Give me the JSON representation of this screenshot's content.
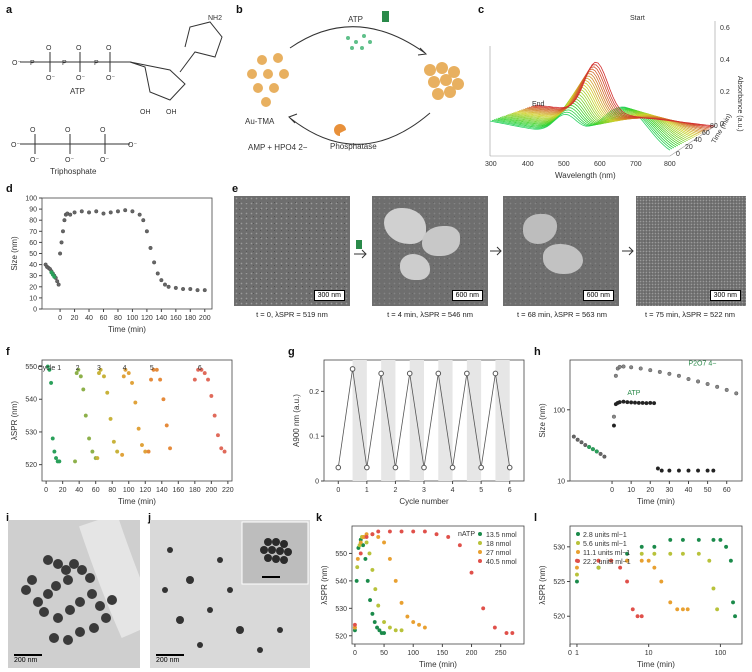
{
  "panel_labels": {
    "a": "a",
    "b": "b",
    "c": "c",
    "d": "d",
    "e": "e",
    "f": "f",
    "g": "g",
    "h": "h",
    "i": "i",
    "j": "j",
    "k": "k",
    "l": "l"
  },
  "panel_a": {
    "atp": "ATP",
    "triphosphate": "Triphosphate",
    "nh2": "NH2",
    "oh1": "OH",
    "oh2": "OH"
  },
  "panel_b": {
    "atp": "ATP",
    "au_tma": "Au-TMA",
    "phosphatase": "Phosphatase",
    "amp": "AMP + HPO4 2−"
  },
  "panel_c": {
    "start": "Start",
    "end": "End",
    "xlabel": "Wavelength (nm)",
    "ylabel": "Absorbance (a.u.)",
    "zlabel": "Time (min)",
    "xticks": [
      "300",
      "400",
      "500",
      "600",
      "700",
      "800"
    ],
    "yticks": [
      "0",
      "0.2",
      "0.4",
      "0.6"
    ],
    "zticks": [
      "0",
      "20",
      "40",
      "60",
      "80"
    ]
  },
  "panel_e": {
    "captions": [
      "t = 0, λSPR = 519 nm",
      "t = 4 min, λSPR = 546 nm",
      "t = 68 min, λSPR = 563 nm",
      "t = 75 min, λSPR = 522 nm"
    ],
    "scalebars": [
      "300 nm",
      "600 nm",
      "600 nm",
      "300 nm"
    ]
  },
  "panel_i": {
    "scalebar": "200 nm"
  },
  "panel_j": {
    "scalebar": "200 nm"
  },
  "chart_data": [
    {
      "id": "d",
      "type": "scatter",
      "xlabel": "Time (min)",
      "ylabel": "Size (nm)",
      "xlim": [
        -25,
        210
      ],
      "ylim": [
        0,
        100
      ],
      "xticks": [
        0,
        20,
        40,
        60,
        80,
        100,
        120,
        140,
        160,
        180,
        200
      ],
      "yticks": [
        0,
        10,
        20,
        30,
        40,
        50,
        60,
        70,
        80,
        90,
        100
      ],
      "series": [
        {
          "color": "#666",
          "x": [
            -20,
            -18,
            -16,
            -14,
            -12,
            -10,
            -8,
            -6,
            -4,
            -2,
            0,
            2,
            4,
            6,
            8,
            10,
            14,
            20,
            30,
            40,
            50,
            60,
            70,
            80,
            90,
            100,
            110,
            115,
            120,
            125,
            130,
            135,
            140,
            145,
            150,
            160,
            170,
            180,
            190,
            200
          ],
          "y": [
            40,
            38,
            37,
            36,
            34,
            32,
            30,
            28,
            25,
            22,
            50,
            60,
            70,
            80,
            85,
            86,
            85,
            87,
            88,
            87,
            88,
            86,
            87,
            88,
            89,
            88,
            85,
            80,
            70,
            55,
            42,
            32,
            26,
            22,
            20,
            19,
            18,
            18,
            17,
            17
          ]
        },
        {
          "color": "#2aa05a",
          "x": [
            -12,
            -10,
            -8
          ],
          "y": [
            33,
            31,
            29
          ]
        }
      ]
    },
    {
      "id": "f",
      "type": "scatter",
      "title": "",
      "xlabel": "Time (min)",
      "ylabel": "λSPR (nm)",
      "xlim": [
        -5,
        225
      ],
      "ylim": [
        515,
        552
      ],
      "xticks": [
        0,
        20,
        40,
        60,
        80,
        100,
        120,
        140,
        160,
        180,
        200,
        220
      ],
      "yticks": [
        520,
        530,
        540,
        550
      ],
      "cycle_labels": [
        "Cycle 1",
        "2",
        "3",
        "4",
        "5",
        "6"
      ],
      "series": [
        {
          "color": "#2aa05a",
          "x": [
            2,
            4,
            6,
            8,
            10,
            12,
            14,
            16
          ],
          "y": [
            550,
            549,
            545,
            528,
            524,
            522,
            521,
            521
          ]
        },
        {
          "color": "#8db04a",
          "x": [
            35,
            37,
            39,
            42,
            45,
            48,
            52,
            56,
            60
          ],
          "y": [
            521,
            548,
            549,
            547,
            543,
            535,
            528,
            524,
            522
          ]
        },
        {
          "color": "#c8b23a",
          "x": [
            62,
            64,
            66,
            70,
            74,
            78,
            82,
            86
          ],
          "y": [
            522,
            548,
            549,
            547,
            542,
            534,
            527,
            524
          ]
        },
        {
          "color": "#e0a23a",
          "x": [
            92,
            94,
            96,
            100,
            104,
            108,
            112,
            116,
            120
          ],
          "y": [
            523,
            547,
            549,
            548,
            545,
            539,
            531,
            526,
            524
          ]
        },
        {
          "color": "#e58a3a",
          "x": [
            124,
            127,
            130,
            134,
            138,
            142,
            146,
            150
          ],
          "y": [
            524,
            546,
            549,
            549,
            546,
            540,
            532,
            525
          ]
        },
        {
          "color": "#e06a5a",
          "x": [
            180,
            184,
            188,
            192,
            196,
            200,
            204,
            208,
            212,
            216
          ],
          "y": [
            546,
            549,
            549,
            548,
            546,
            541,
            535,
            529,
            525,
            524
          ]
        }
      ]
    },
    {
      "id": "g",
      "type": "line",
      "xlabel": "Cycle number",
      "ylabel": "A900 nm (a.u.)",
      "xlim": [
        -0.5,
        6.5
      ],
      "ylim": [
        0,
        0.27
      ],
      "xticks": [
        0,
        1,
        2,
        3,
        4,
        5,
        6
      ],
      "yticks": [
        0,
        0.1,
        0.2
      ],
      "x": [
        0,
        0.5,
        1,
        1.5,
        2,
        2.5,
        3,
        3.5,
        4,
        4.5,
        5,
        5.5,
        6
      ],
      "y": [
        0.03,
        0.25,
        0.03,
        0.24,
        0.03,
        0.24,
        0.03,
        0.24,
        0.03,
        0.24,
        0.03,
        0.24,
        0.03
      ]
    },
    {
      "id": "h",
      "type": "scatter",
      "xlabel": "Time (min)",
      "ylabel": "Size (nm)",
      "xlim": [
        -22,
        68
      ],
      "log_y": true,
      "ylim": [
        10,
        500
      ],
      "xticks": [
        0,
        10,
        20,
        30,
        40,
        50,
        60
      ],
      "yticks": [
        10,
        100
      ],
      "labels": {
        "atp": "ATP",
        "p2o7": "P2O7 4−"
      },
      "series": [
        {
          "name": "ATP",
          "color": "#222",
          "x": [
            1,
            2,
            3,
            4,
            6,
            8,
            10,
            12,
            14,
            16,
            18,
            20,
            22,
            24,
            26,
            30,
            35,
            40,
            45,
            50,
            53
          ],
          "y": [
            60,
            120,
            125,
            128,
            130,
            128,
            127,
            126,
            125,
            125,
            124,
            125,
            124,
            15,
            14,
            14,
            14,
            14,
            14,
            14,
            14
          ]
        },
        {
          "name": "P2O7 4−",
          "color": "#888",
          "x": [
            1,
            2,
            3,
            4,
            6,
            10,
            15,
            20,
            25,
            30,
            35,
            40,
            45,
            50,
            55,
            60,
            65
          ],
          "y": [
            80,
            300,
            380,
            400,
            405,
            395,
            380,
            360,
            340,
            320,
            300,
            270,
            250,
            230,
            210,
            190,
            170
          ]
        },
        {
          "color": "#666",
          "x": [
            -20,
            -18,
            -16,
            -14,
            -12,
            -10,
            -8,
            -6,
            -4
          ],
          "y": [
            42,
            38,
            35,
            32,
            30,
            28,
            26,
            24,
            22
          ]
        },
        {
          "color": "#2aa05a",
          "x": [
            -12,
            -10,
            -8
          ],
          "y": [
            30,
            28,
            26
          ]
        }
      ]
    },
    {
      "id": "k",
      "type": "scatter",
      "xlabel": "Time (min)",
      "ylabel": "λSPR (nm)",
      "xlim": [
        -5,
        290
      ],
      "ylim": [
        517,
        560
      ],
      "xticks": [
        0,
        50,
        100,
        150,
        200,
        250
      ],
      "yticks": [
        520,
        530,
        540,
        550
      ],
      "legend_title": "nATP",
      "series": [
        {
          "name": "13.5 nmol",
          "color": "#1a8a4a",
          "x": [
            0,
            3,
            6,
            10,
            14,
            18,
            22,
            26,
            30,
            34,
            38,
            42,
            46,
            50
          ],
          "y": [
            522,
            540,
            552,
            555,
            553,
            548,
            540,
            533,
            528,
            525,
            523,
            522,
            521,
            521
          ]
        },
        {
          "name": "18 nmol",
          "color": "#b8c23a",
          "x": [
            0,
            4,
            8,
            12,
            16,
            20,
            25,
            30,
            35,
            40,
            50,
            60,
            70,
            80
          ],
          "y": [
            523,
            545,
            553,
            556,
            556,
            554,
            550,
            544,
            537,
            531,
            525,
            523,
            522,
            522
          ]
        },
        {
          "name": "27 nmol",
          "color": "#e8a030",
          "x": [
            0,
            5,
            10,
            15,
            20,
            30,
            40,
            50,
            60,
            70,
            80,
            90,
            100,
            110,
            120
          ],
          "y": [
            523,
            548,
            554,
            556,
            557,
            557,
            556,
            554,
            548,
            540,
            532,
            527,
            525,
            524,
            523
          ]
        },
        {
          "name": "40.5 nmol",
          "color": "#e0504a",
          "x": [
            0,
            10,
            20,
            30,
            40,
            60,
            80,
            100,
            120,
            140,
            160,
            180,
            200,
            220,
            240,
            260,
            270
          ],
          "y": [
            524,
            550,
            556,
            557,
            558,
            558,
            558,
            558,
            558,
            557,
            556,
            553,
            543,
            530,
            523,
            521,
            521
          ]
        }
      ]
    },
    {
      "id": "l",
      "type": "scatter",
      "xlabel": "Time (min)",
      "ylabel": "λSPR (nm)",
      "log_x": true,
      "xlim": [
        0,
        200
      ],
      "ylim": [
        516,
        533
      ],
      "xtick_labels": [
        "0",
        "1",
        "10",
        "100"
      ],
      "yticks": [
        520,
        525,
        530
      ],
      "series": [
        {
          "name": "2.8 units ml−1",
          "color": "#1a8a4a",
          "x": [
            1,
            2,
            3,
            5,
            8,
            12,
            20,
            30,
            50,
            80,
            100,
            120,
            140,
            150,
            160
          ],
          "y": [
            525,
            527,
            528,
            529,
            530,
            530,
            531,
            531,
            531,
            531,
            531,
            530,
            528,
            522,
            520
          ]
        },
        {
          "name": "5.6 units ml−1",
          "color": "#b8c23a",
          "x": [
            1,
            2,
            3,
            5,
            8,
            12,
            20,
            30,
            50,
            70,
            80,
            90
          ],
          "y": [
            526,
            527,
            528,
            528,
            529,
            529,
            529,
            529,
            529,
            528,
            524,
            521
          ]
        },
        {
          "name": "11.1 units ml−1",
          "color": "#e8a030",
          "x": [
            1,
            2,
            3,
            5,
            8,
            10,
            12,
            15,
            20,
            25,
            30,
            35
          ],
          "y": [
            527,
            528,
            528,
            528,
            528,
            528,
            527,
            525,
            522,
            521,
            521,
            521
          ]
        },
        {
          "name": "22.2 units ml−1",
          "color": "#e0504a",
          "x": [
            1,
            2,
            3,
            4,
            5,
            6,
            7,
            8
          ],
          "y": [
            528,
            528,
            528,
            527,
            525,
            521,
            520,
            520
          ]
        }
      ]
    }
  ]
}
